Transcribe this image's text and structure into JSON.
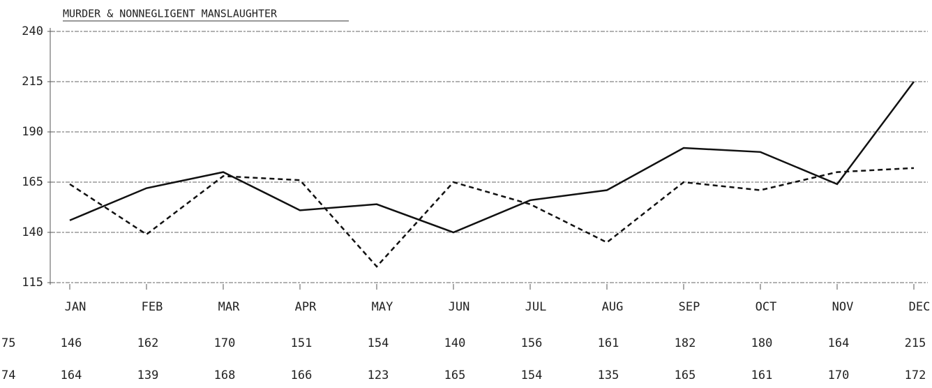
{
  "chart_data": {
    "type": "line",
    "title": "MURDER & NONNEGLIGENT MANSLAUGHTER",
    "categories": [
      "JAN",
      "FEB",
      "MAR",
      "APR",
      "MAY",
      "JUN",
      "JUL",
      "AUG",
      "SEP",
      "OCT",
      "NOV",
      "DEC"
    ],
    "series": [
      {
        "name": "75",
        "color": "#111111",
        "dash": false,
        "values": [
          146,
          162,
          170,
          151,
          154,
          140,
          156,
          161,
          182,
          180,
          164,
          215
        ]
      },
      {
        "name": "74",
        "color": "#111111",
        "dash": true,
        "values": [
          164,
          139,
          168,
          166,
          123,
          165,
          154,
          135,
          165,
          161,
          170,
          172
        ]
      }
    ],
    "ylim": [
      115,
      240
    ],
    "yticks": [
      115,
      140,
      165,
      190,
      215,
      240
    ],
    "grid": true
  }
}
